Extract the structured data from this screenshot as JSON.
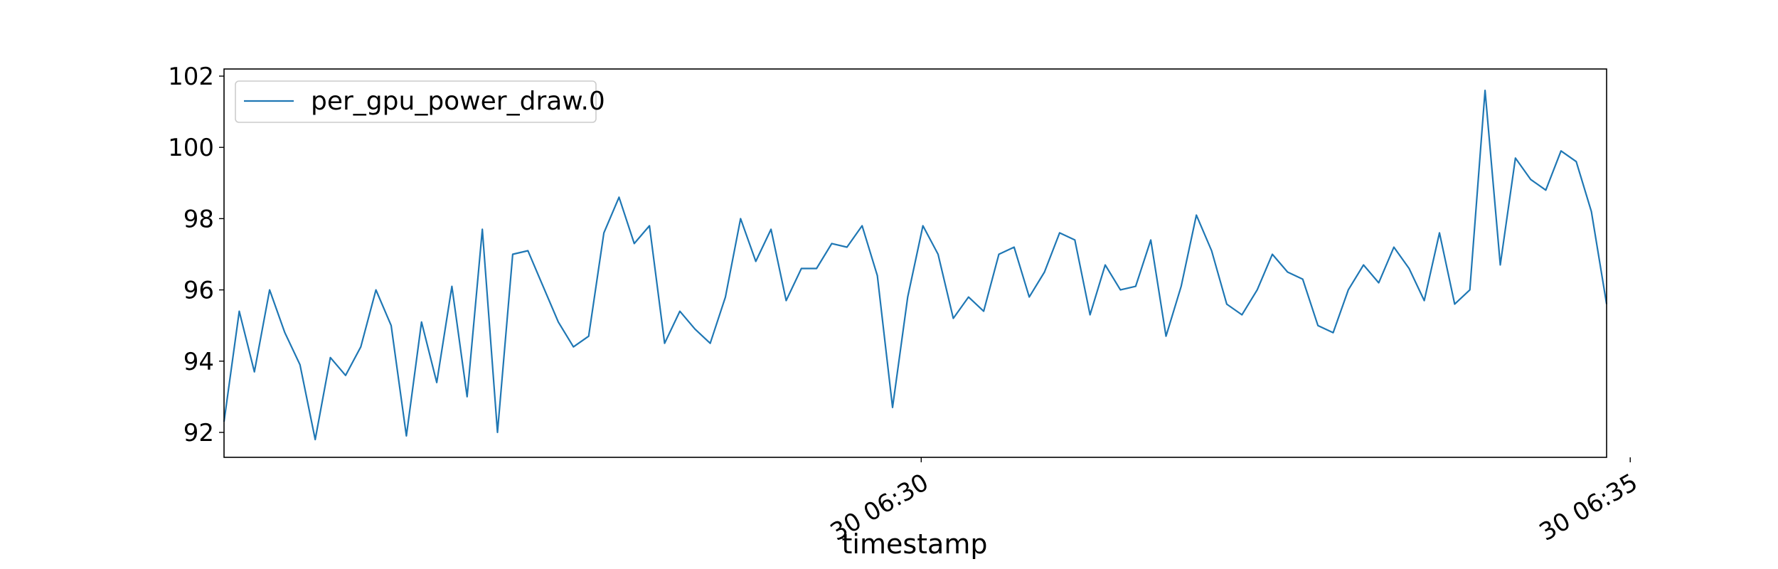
{
  "chart_data": {
    "type": "line",
    "title": "",
    "xlabel": "timestamp",
    "ylabel": "",
    "x_range_seconds_after_0625": [
      5,
      590
    ],
    "xlim_label": [
      "30 06:25:05",
      "30 06:34:50"
    ],
    "ylim": [
      91.3,
      102.2
    ],
    "yticks": [
      92,
      94,
      96,
      98,
      100,
      102
    ],
    "xticks": [
      {
        "label": "30 06:30",
        "at": "30 06:30:00"
      },
      {
        "label": "30 06:35",
        "at": "30 06:35:00"
      }
    ],
    "grid": false,
    "legend": {
      "placement": "upper-left",
      "entries": [
        "per_gpu_power_draw.0"
      ]
    },
    "series": [
      {
        "name": "per_gpu_power_draw.0",
        "color": "#1f77b4",
        "values": [
          92.3,
          95.4,
          93.7,
          96.0,
          94.8,
          93.9,
          91.8,
          94.1,
          93.6,
          94.4,
          96.0,
          95.0,
          91.9,
          95.1,
          93.4,
          96.1,
          93.0,
          97.7,
          92.0,
          97.0,
          97.1,
          96.1,
          95.1,
          94.4,
          94.7,
          97.6,
          98.6,
          97.3,
          97.8,
          94.5,
          95.4,
          94.9,
          94.5,
          95.8,
          98.0,
          96.8,
          97.7,
          95.7,
          96.6,
          96.6,
          97.3,
          97.2,
          97.8,
          96.4,
          92.7,
          95.8,
          97.8,
          97.0,
          95.2,
          95.8,
          95.4,
          97.0,
          97.2,
          95.8,
          96.5,
          97.6,
          97.4,
          95.3,
          96.7,
          96.0,
          96.1,
          97.4,
          94.7,
          96.1,
          98.1,
          97.1,
          95.6,
          95.3,
          96.0,
          97.0,
          96.5,
          96.3,
          95.0,
          94.8,
          96.0,
          96.7,
          96.2,
          97.2,
          96.6,
          95.7,
          97.6,
          95.6,
          96.0,
          101.6,
          96.7,
          99.7,
          99.1,
          98.8,
          99.9,
          99.6,
          98.2,
          95.6
        ]
      }
    ]
  }
}
